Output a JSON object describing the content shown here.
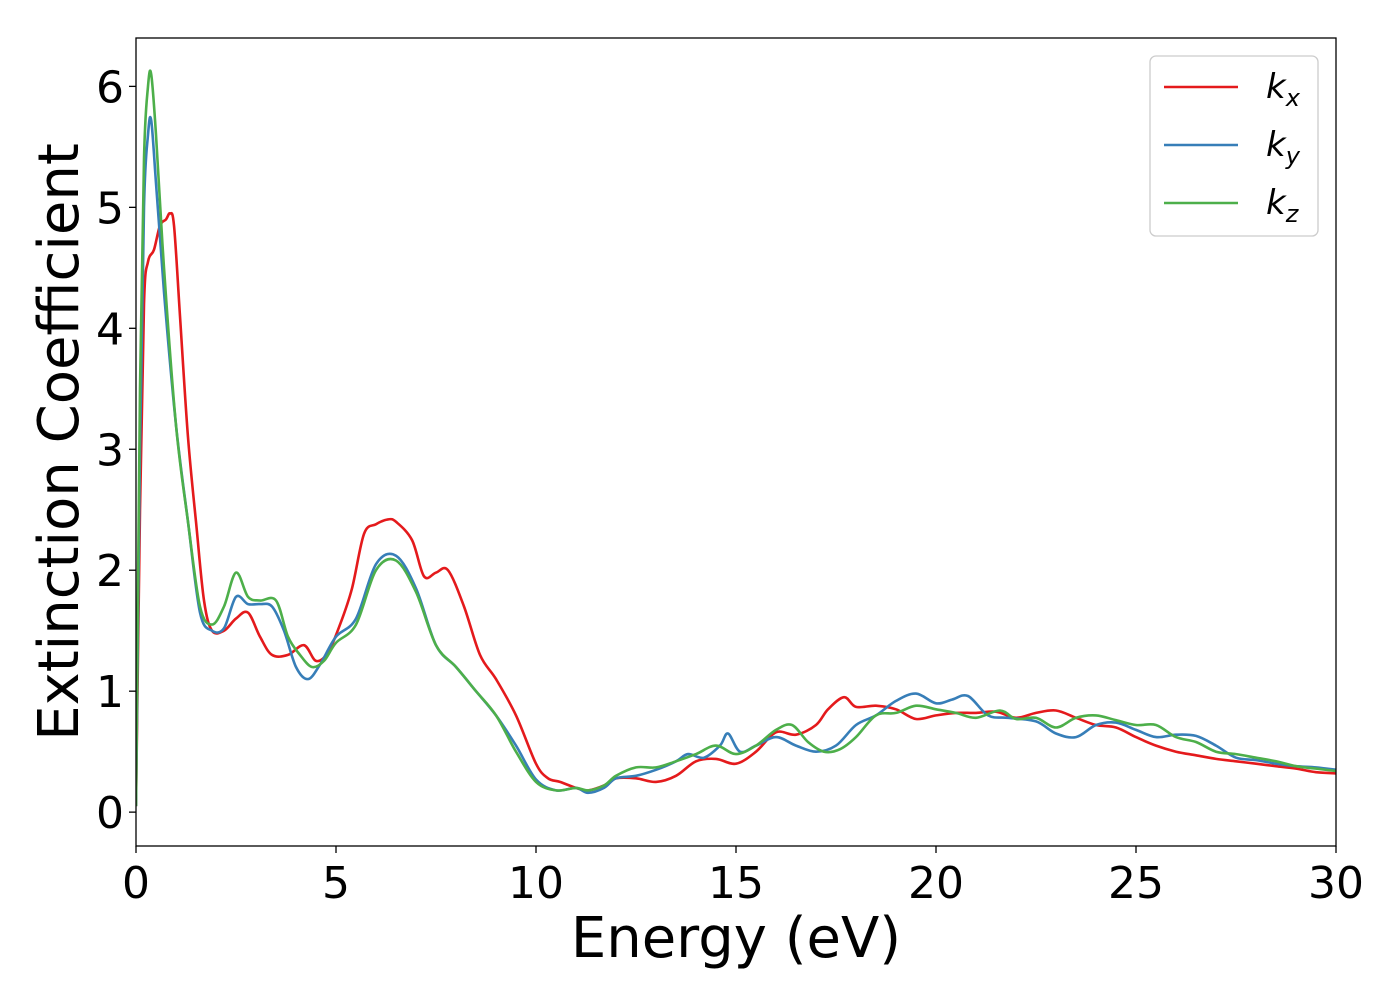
{
  "chart_data": {
    "type": "line",
    "title": "",
    "xlabel": "Energy (eV)",
    "ylabel": "Extinction Coefficient",
    "xlim": [
      0,
      30
    ],
    "ylim": [
      -0.28,
      6.4
    ],
    "xticks": [
      0,
      5,
      10,
      15,
      20,
      25,
      30
    ],
    "xtick_labels": [
      "0",
      "5",
      "10",
      "15",
      "20",
      "25",
      "30"
    ],
    "yticks": [
      0,
      1,
      2,
      3,
      4,
      5,
      6
    ],
    "ytick_labels": [
      "0",
      "1",
      "2",
      "3",
      "4",
      "5",
      "6"
    ],
    "grid": false,
    "legend_position": "top-right",
    "series": [
      {
        "name": "k",
        "subscript": "x",
        "color": "#e41a1c",
        "x": [
          0,
          0.1,
          0.2,
          0.3,
          0.45,
          0.6,
          0.75,
          0.85,
          0.95,
          1.1,
          1.3,
          1.5,
          1.7,
          1.9,
          2.2,
          2.5,
          2.8,
          3.1,
          3.4,
          3.8,
          4.2,
          4.5,
          4.8,
          5.1,
          5.4,
          5.7,
          6.0,
          6.3,
          6.5,
          6.9,
          7.2,
          7.5,
          7.8,
          8.2,
          8.6,
          9.0,
          9.5,
          10.0,
          10.3,
          10.6,
          11.0,
          11.3,
          11.7,
          12.0,
          12.5,
          13.0,
          13.5,
          14.0,
          14.5,
          15.0,
          15.5,
          16.0,
          16.5,
          17.0,
          17.3,
          17.7,
          18.0,
          18.5,
          19.0,
          19.5,
          20.0,
          20.5,
          21.0,
          21.5,
          22.0,
          22.5,
          23.0,
          23.5,
          24.0,
          24.5,
          25.0,
          25.5,
          26.0,
          26.5,
          27.0,
          27.5,
          28.0,
          28.5,
          29.0,
          29.5,
          30.0
        ],
        "y": [
          0.05,
          2.5,
          4.2,
          4.55,
          4.65,
          4.85,
          4.9,
          4.95,
          4.85,
          4.1,
          3.1,
          2.4,
          1.75,
          1.5,
          1.5,
          1.6,
          1.65,
          1.45,
          1.3,
          1.3,
          1.38,
          1.25,
          1.32,
          1.55,
          1.85,
          2.3,
          2.38,
          2.42,
          2.4,
          2.25,
          1.95,
          1.98,
          2.0,
          1.7,
          1.3,
          1.1,
          0.8,
          0.4,
          0.28,
          0.25,
          0.2,
          0.18,
          0.22,
          0.28,
          0.28,
          0.25,
          0.3,
          0.42,
          0.44,
          0.4,
          0.5,
          0.66,
          0.64,
          0.72,
          0.85,
          0.95,
          0.87,
          0.88,
          0.85,
          0.77,
          0.8,
          0.82,
          0.82,
          0.83,
          0.78,
          0.82,
          0.84,
          0.78,
          0.72,
          0.7,
          0.62,
          0.55,
          0.5,
          0.47,
          0.44,
          0.42,
          0.4,
          0.38,
          0.36,
          0.33,
          0.32
        ]
      },
      {
        "name": "k",
        "subscript": "y",
        "color": "#377eb8",
        "x": [
          0,
          0.1,
          0.2,
          0.3,
          0.38,
          0.5,
          0.7,
          1.0,
          1.3,
          1.6,
          1.9,
          2.2,
          2.5,
          2.8,
          3.1,
          3.4,
          3.7,
          4.0,
          4.3,
          4.6,
          5.0,
          5.5,
          6.0,
          6.5,
          7.0,
          7.5,
          8.0,
          8.5,
          9.0,
          9.5,
          10.0,
          10.5,
          11.0,
          11.3,
          11.7,
          12.0,
          12.5,
          13.0,
          13.5,
          13.8,
          14.2,
          14.6,
          14.8,
          15.1,
          15.5,
          16.0,
          16.5,
          17.0,
          17.5,
          18.0,
          18.5,
          19.0,
          19.5,
          20.0,
          20.4,
          20.8,
          21.3,
          21.8,
          22.5,
          23.0,
          23.5,
          24.0,
          24.5,
          25.0,
          25.5,
          26.0,
          26.5,
          27.0,
          27.5,
          28.0,
          28.5,
          29.0,
          29.5,
          30.0
        ],
        "y": [
          0.05,
          3.0,
          5.0,
          5.6,
          5.72,
          5.2,
          4.3,
          3.2,
          2.4,
          1.65,
          1.5,
          1.52,
          1.78,
          1.72,
          1.72,
          1.7,
          1.5,
          1.2,
          1.1,
          1.22,
          1.45,
          1.6,
          2.05,
          2.12,
          1.85,
          1.38,
          1.2,
          1.0,
          0.8,
          0.55,
          0.27,
          0.18,
          0.2,
          0.16,
          0.2,
          0.28,
          0.3,
          0.35,
          0.42,
          0.48,
          0.45,
          0.55,
          0.65,
          0.5,
          0.55,
          0.62,
          0.55,
          0.5,
          0.55,
          0.72,
          0.8,
          0.92,
          0.98,
          0.9,
          0.93,
          0.96,
          0.8,
          0.78,
          0.75,
          0.65,
          0.62,
          0.72,
          0.74,
          0.68,
          0.62,
          0.64,
          0.63,
          0.55,
          0.45,
          0.43,
          0.4,
          0.38,
          0.37,
          0.35
        ]
      },
      {
        "name": "k",
        "subscript": "z",
        "color": "#4daf4a",
        "x": [
          0,
          0.1,
          0.2,
          0.3,
          0.38,
          0.5,
          0.7,
          1.0,
          1.3,
          1.6,
          1.9,
          2.2,
          2.5,
          2.8,
          3.1,
          3.5,
          3.8,
          4.1,
          4.4,
          4.7,
          5.0,
          5.5,
          6.0,
          6.5,
          7.0,
          7.5,
          8.0,
          8.5,
          9.0,
          9.5,
          10.0,
          10.5,
          11.0,
          11.3,
          11.7,
          12.0,
          12.5,
          13.0,
          13.5,
          14.0,
          14.5,
          15.0,
          15.5,
          16.0,
          16.4,
          16.8,
          17.2,
          17.6,
          18.0,
          18.5,
          19.0,
          19.5,
          20.0,
          20.5,
          21.0,
          21.6,
          22.0,
          22.5,
          23.0,
          23.5,
          24.0,
          24.5,
          25.0,
          25.5,
          26.0,
          26.5,
          27.0,
          27.5,
          28.0,
          28.5,
          29.0,
          29.5,
          30.0
        ],
        "y": [
          0.05,
          3.5,
          5.4,
          6.0,
          6.1,
          5.6,
          4.5,
          3.2,
          2.4,
          1.7,
          1.55,
          1.7,
          1.98,
          1.78,
          1.75,
          1.75,
          1.45,
          1.3,
          1.2,
          1.25,
          1.4,
          1.55,
          2.0,
          2.08,
          1.82,
          1.38,
          1.2,
          1.0,
          0.8,
          0.5,
          0.25,
          0.18,
          0.2,
          0.18,
          0.22,
          0.3,
          0.37,
          0.37,
          0.42,
          0.48,
          0.55,
          0.48,
          0.55,
          0.68,
          0.72,
          0.58,
          0.5,
          0.52,
          0.62,
          0.8,
          0.82,
          0.88,
          0.85,
          0.82,
          0.78,
          0.84,
          0.77,
          0.78,
          0.7,
          0.78,
          0.8,
          0.76,
          0.72,
          0.72,
          0.62,
          0.58,
          0.5,
          0.48,
          0.45,
          0.42,
          0.38,
          0.36,
          0.34
        ]
      }
    ]
  }
}
